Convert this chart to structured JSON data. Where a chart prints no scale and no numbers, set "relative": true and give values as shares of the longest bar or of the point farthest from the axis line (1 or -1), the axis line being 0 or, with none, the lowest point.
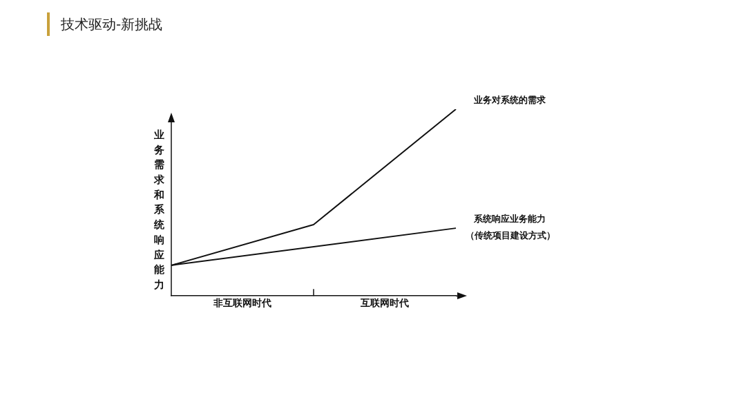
{
  "chart_data": {
    "type": "line",
    "title": "技术驱动-新挑战",
    "ylabel": "业务需求和系统响应能力",
    "relative": true,
    "categories": [
      null,
      "非互联网时代",
      null,
      "互联网时代",
      null
    ],
    "series": [
      {
        "name": "业务对系统的需求",
        "color": "#111111",
        "values": [
          0.164,
          null,
          0.382,
          null,
          1
        ]
      },
      {
        "name": "系统响应业务能力",
        "color": "#111111",
        "values": [
          0.164,
          null,
          null,
          null,
          0.363
        ]
      }
    ],
    "annotations": [
      "（传统项目建设方式）"
    ],
    "legend": false,
    "grid": false,
    "marker": "none",
    "line_style": "solid"
  }
}
